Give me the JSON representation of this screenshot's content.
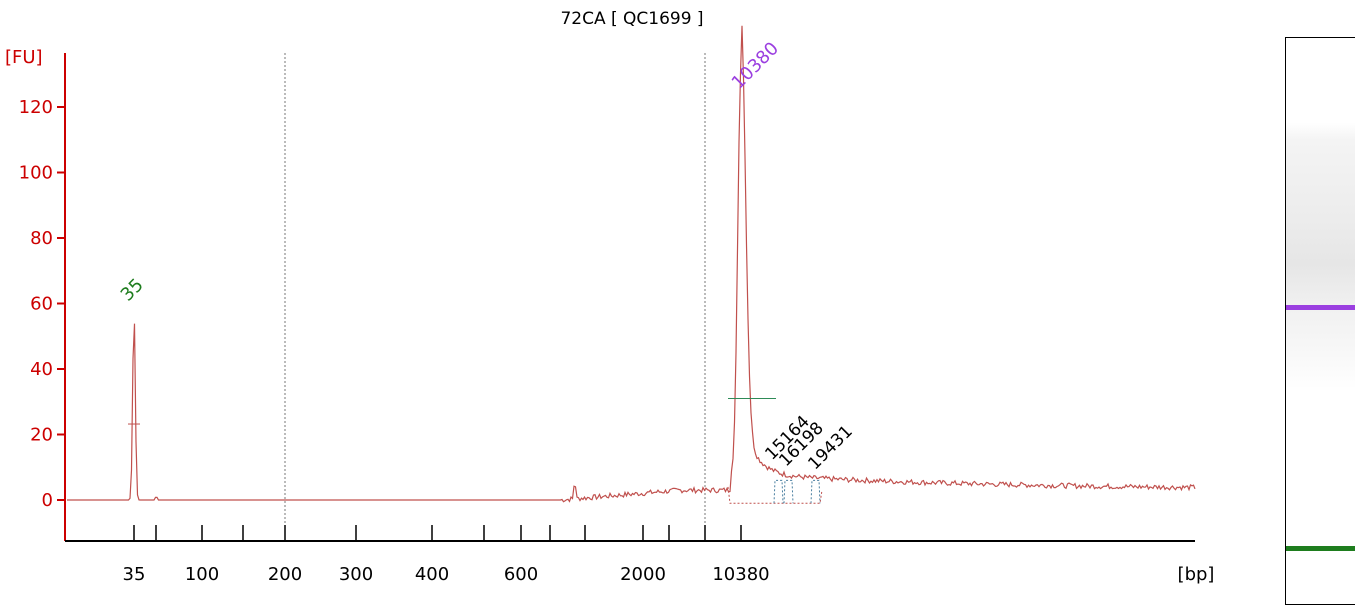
{
  "chart_data": {
    "type": "line",
    "title": "72CA  [ QC1699 ]",
    "ylabel": "[FU]",
    "xlabel": "[bp]",
    "ylim": [
      -12,
      128
    ],
    "y_ticks": [
      0,
      20,
      40,
      60,
      80,
      100,
      120
    ],
    "x_tick_labels": [
      "35",
      "100",
      "200",
      "300",
      "400",
      "600",
      "2000",
      "10380"
    ],
    "series": [
      {
        "color": "#c0504d",
        "points": [
          [
            "35",
            0
          ],
          [
            "35",
            58
          ],
          [
            "35",
            0
          ],
          [
            "100",
            0.5
          ],
          [
            "200",
            0.5
          ],
          [
            "300",
            0.3
          ],
          [
            "400",
            0.5
          ],
          [
            "600",
            1.5
          ],
          [
            "2000",
            3
          ],
          [
            "10380",
            124
          ],
          [
            "15164",
            9
          ],
          [
            "16198",
            8
          ],
          [
            "19431",
            6
          ]
        ]
      }
    ],
    "peaks": [
      {
        "label": "35",
        "value": 58,
        "color": "#1e7d1e"
      },
      {
        "label": "10380",
        "value": 124,
        "color": "#9b3fe0"
      }
    ],
    "small_peaks": [
      "15164",
      "16198",
      "19431"
    ],
    "colors": {
      "axis": "#cc0000",
      "trace": "#c0504d",
      "lower_marker": "#1e7d1e",
      "upper_marker": "#9b3fe0"
    }
  }
}
